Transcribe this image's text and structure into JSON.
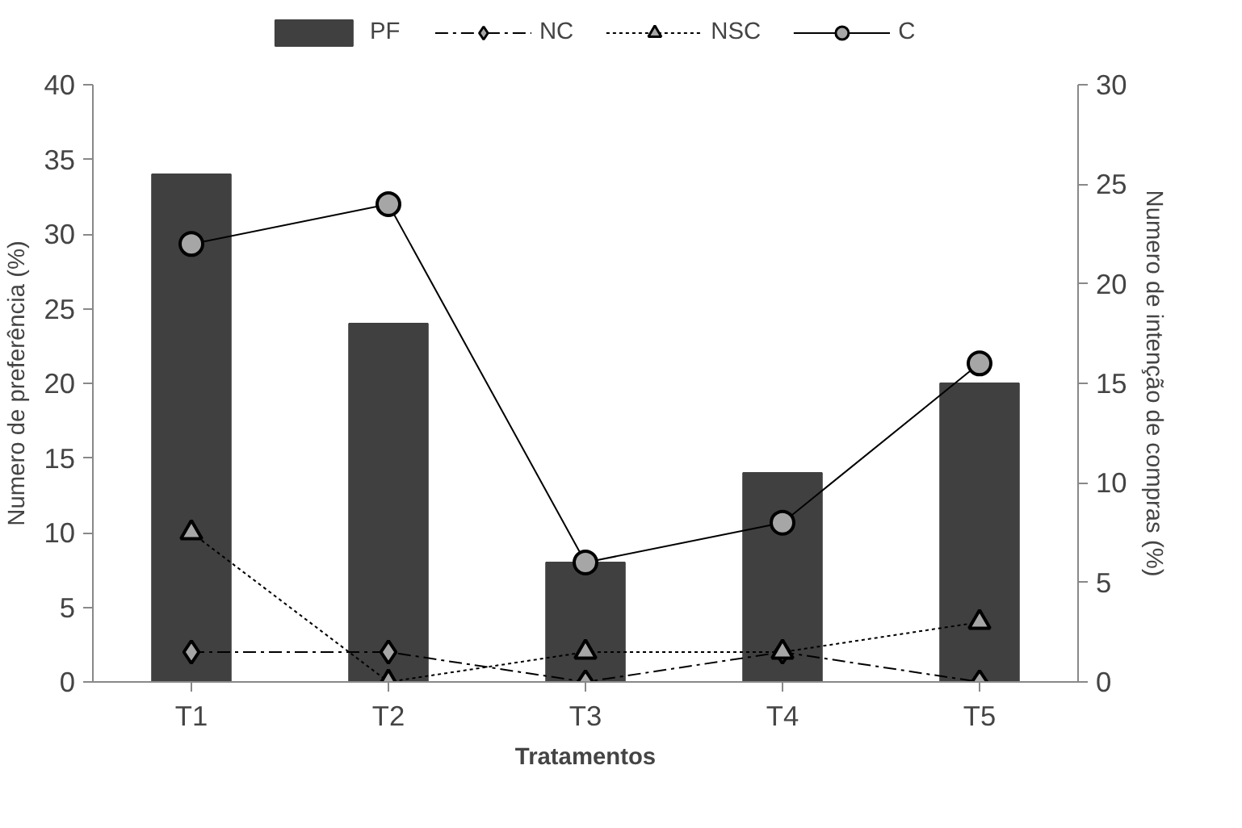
{
  "chart_data": {
    "type": "bar",
    "xlabel": "Tratamentos",
    "ylabel": "Numero de preferência (%)",
    "y2label": "Numero de intenção de compras (%)",
    "categories": [
      "T1",
      "T2",
      "T3",
      "T4",
      "T5"
    ],
    "series": [
      {
        "name": "PF",
        "color": "#404040",
        "values": [
          34,
          24,
          8,
          14,
          20
        ]
      },
      {
        "name": "NC",
        "type": "line",
        "axis": "y2",
        "color": "#a6a6a6",
        "marker": "diamond",
        "line_style": "dashdot",
        "values": [
          1.5,
          1.5,
          0,
          1.5,
          0
        ]
      },
      {
        "name": "NSC",
        "type": "line",
        "axis": "y2",
        "color": "#a6a6a6",
        "marker": "triangle",
        "line_style": "dotted",
        "values": [
          7.5,
          0,
          1.5,
          1.5,
          3
        ]
      },
      {
        "name": "C",
        "type": "line",
        "axis": "y2",
        "color": "#a6a6a6",
        "marker": "circle",
        "line_style": "solid",
        "values": [
          22,
          24,
          6,
          8,
          16
        ]
      }
    ],
    "ylim": [
      0,
      40
    ],
    "yticks": [
      0,
      5,
      10,
      15,
      20,
      25,
      30,
      35,
      40
    ],
    "y2lim": [
      0,
      30
    ],
    "y2ticks": [
      0,
      5,
      10,
      15,
      20,
      25,
      30
    ],
    "grid": false,
    "legend": "top"
  }
}
